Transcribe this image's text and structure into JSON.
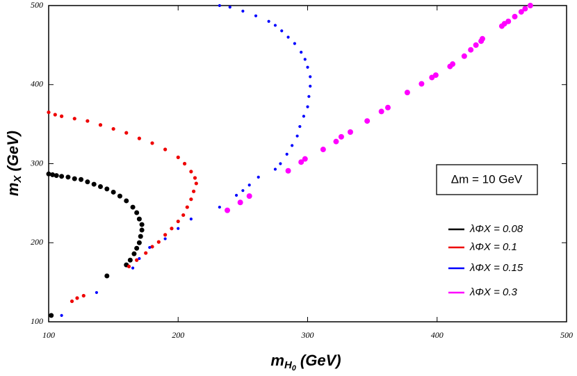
{
  "chart_data": {
    "type": "scatter",
    "x_label": {
      "base": "m",
      "sub": "H",
      "subsub": "0",
      "unit": "(GeV)"
    },
    "y_label": {
      "base": "m",
      "sub": "X",
      "unit": "(GeV)"
    },
    "annotation": "Δm = 10 GeV",
    "xlim": [
      100,
      500
    ],
    "xticks": [
      100,
      200,
      300,
      400,
      500
    ],
    "ylim": [
      100,
      500
    ],
    "yticks": [
      100,
      200,
      300,
      400,
      500
    ],
    "series": [
      {
        "name": "λΦX = 0.08",
        "color": "#000000",
        "x": [
          100,
          103,
          106,
          110,
          115,
          120,
          125,
          130,
          135,
          140,
          145,
          150,
          155,
          160,
          165,
          168,
          170,
          172,
          172,
          171,
          170,
          168,
          166,
          163,
          160,
          145,
          102
        ],
        "values": [
          287,
          286,
          285,
          284,
          283,
          281,
          280,
          277,
          274,
          271,
          268,
          264,
          259,
          253,
          245,
          238,
          230,
          223,
          216,
          208,
          200,
          193,
          186,
          178,
          172,
          158,
          108
        ]
      },
      {
        "name": "λΦX = 0.1",
        "color": "#ee0000",
        "x": [
          100,
          105,
          110,
          120,
          130,
          140,
          150,
          160,
          170,
          180,
          190,
          200,
          205,
          210,
          213,
          214,
          212,
          210,
          207,
          204,
          200,
          195,
          190,
          185,
          180,
          175,
          168,
          162,
          127,
          122,
          118
        ],
        "values": [
          365,
          362,
          360,
          357,
          354,
          349,
          344,
          339,
          332,
          326,
          318,
          308,
          300,
          290,
          282,
          275,
          265,
          255,
          245,
          235,
          227,
          218,
          210,
          201,
          195,
          187,
          178,
          170,
          133,
          130,
          126
        ]
      },
      {
        "name": "λΦX = 0.15",
        "color": "#0000ff",
        "x": [
          232,
          240,
          250,
          260,
          270,
          275,
          280,
          285,
          290,
          295,
          298,
          300,
          302,
          302,
          301,
          300,
          297,
          294,
          292,
          288,
          284,
          279,
          275,
          262,
          255,
          250,
          245,
          232,
          210,
          200,
          190,
          178,
          170,
          165,
          137,
          110
        ],
        "values": [
          500,
          498,
          493,
          487,
          480,
          475,
          468,
          460,
          452,
          441,
          432,
          422,
          410,
          398,
          385,
          372,
          360,
          347,
          335,
          323,
          312,
          300,
          293,
          283,
          273,
          266,
          260,
          245,
          230,
          218,
          205,
          194,
          180,
          168,
          137,
          108
        ]
      },
      {
        "name": "λΦX = 0.3",
        "color": "#ff00ff",
        "x": [
          238,
          248,
          255,
          285,
          295,
          298,
          312,
          322,
          326,
          333,
          346,
          357,
          362,
          377,
          388,
          396,
          399,
          410,
          412,
          421,
          426,
          430,
          434,
          435,
          450,
          452,
          455,
          460,
          465,
          468,
          472
        ],
        "values": [
          241,
          251,
          259,
          291,
          302,
          306,
          318,
          328,
          334,
          340,
          354,
          366,
          371,
          390,
          401,
          409,
          412,
          423,
          426,
          436,
          444,
          450,
          455,
          458,
          474,
          477,
          480,
          486,
          492,
          496,
          500
        ]
      }
    ]
  }
}
